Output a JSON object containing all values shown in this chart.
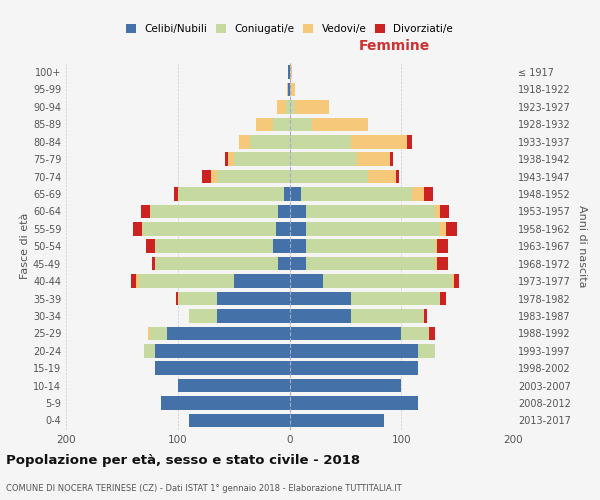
{
  "age_groups": [
    "0-4",
    "5-9",
    "10-14",
    "15-19",
    "20-24",
    "25-29",
    "30-34",
    "35-39",
    "40-44",
    "45-49",
    "50-54",
    "55-59",
    "60-64",
    "65-69",
    "70-74",
    "75-79",
    "80-84",
    "85-89",
    "90-94",
    "95-99",
    "100+"
  ],
  "birth_years": [
    "2013-2017",
    "2008-2012",
    "2003-2007",
    "1998-2002",
    "1993-1997",
    "1988-1992",
    "1983-1987",
    "1978-1982",
    "1973-1977",
    "1968-1972",
    "1963-1967",
    "1958-1962",
    "1953-1957",
    "1948-1952",
    "1943-1947",
    "1938-1942",
    "1933-1937",
    "1928-1932",
    "1923-1927",
    "1918-1922",
    "≤ 1917"
  ],
  "male_celibe": [
    90,
    115,
    100,
    120,
    120,
    110,
    65,
    65,
    50,
    10,
    15,
    12,
    10,
    5,
    0,
    0,
    0,
    0,
    0,
    1,
    1
  ],
  "male_coniugato": [
    0,
    0,
    0,
    0,
    10,
    15,
    25,
    35,
    85,
    110,
    105,
    120,
    115,
    95,
    65,
    50,
    35,
    15,
    3,
    0,
    0
  ],
  "male_vedovo": [
    0,
    0,
    0,
    0,
    0,
    2,
    0,
    0,
    2,
    0,
    0,
    0,
    0,
    0,
    5,
    5,
    10,
    15,
    8,
    1,
    0
  ],
  "male_divorziato": [
    0,
    0,
    0,
    0,
    0,
    0,
    0,
    2,
    5,
    3,
    8,
    8,
    8,
    3,
    8,
    3,
    0,
    0,
    0,
    0,
    0
  ],
  "female_celibe": [
    85,
    115,
    100,
    115,
    115,
    100,
    55,
    55,
    30,
    15,
    15,
    15,
    15,
    10,
    0,
    0,
    0,
    0,
    0,
    0,
    0
  ],
  "female_coniugato": [
    0,
    0,
    0,
    0,
    15,
    25,
    65,
    80,
    115,
    115,
    115,
    120,
    115,
    100,
    70,
    60,
    55,
    20,
    5,
    0,
    0
  ],
  "female_vedovo": [
    0,
    0,
    0,
    0,
    0,
    0,
    0,
    0,
    2,
    2,
    2,
    5,
    5,
    10,
    25,
    30,
    50,
    50,
    30,
    5,
    2
  ],
  "female_divorziato": [
    0,
    0,
    0,
    0,
    0,
    5,
    3,
    5,
    5,
    10,
    10,
    10,
    8,
    8,
    3,
    3,
    5,
    0,
    0,
    0,
    0
  ],
  "color_celibe": "#4472a8",
  "color_coniugato": "#c5d9a0",
  "color_vedovo": "#f5c87a",
  "color_divorziato": "#cc2222",
  "title": "Popolazione per età, sesso e stato civile - 2018",
  "subtitle": "COMUNE DI NOCERA TERINESE (CZ) - Dati ISTAT 1° gennaio 2018 - Elaborazione TUTTITALIA.IT",
  "xlabel_right": "Femmine",
  "ylabel_left": "Fasce di età",
  "ylabel_right": "Anni di nascita",
  "xlim": 200,
  "bg_color": "#f5f5f5",
  "grid_color": "#cccccc"
}
